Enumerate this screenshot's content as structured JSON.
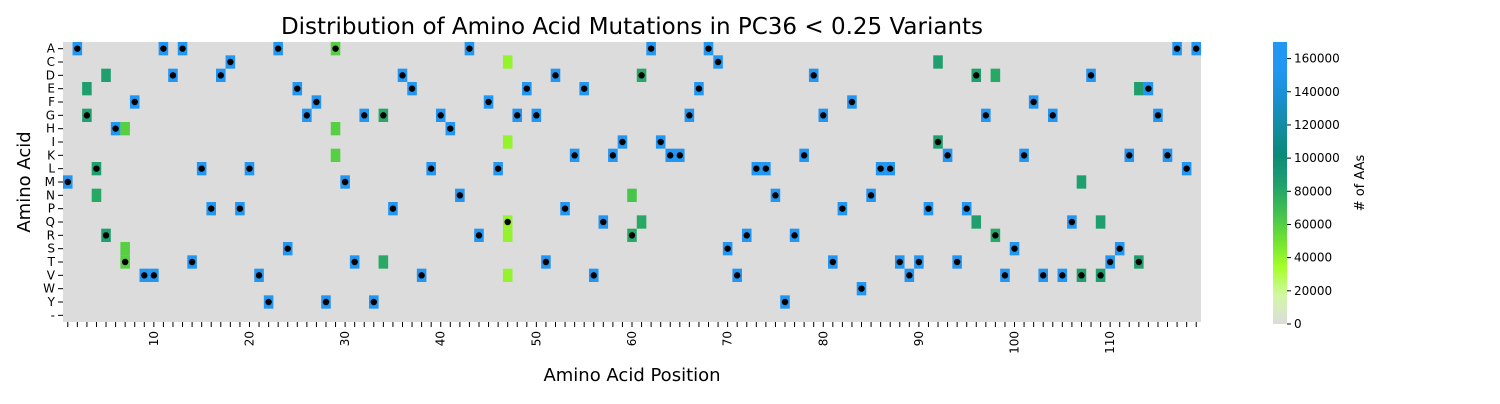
{
  "chart_data": {
    "type": "heatmap",
    "title": "Distribution of Amino Acid Mutations in PC36 < 0.25 Variants",
    "xlabel": "Amino Acid Position",
    "ylabel": "Amino Acid",
    "x_range": [
      1,
      119
    ],
    "x_tick_labels": [
      "10",
      "20",
      "30",
      "40",
      "50",
      "60",
      "70",
      "80",
      "90",
      "100",
      "110"
    ],
    "x_tick_values": [
      10,
      20,
      30,
      40,
      50,
      60,
      70,
      80,
      90,
      100,
      110
    ],
    "y_categories": [
      "A",
      "C",
      "D",
      "E",
      "F",
      "G",
      "H",
      "I",
      "K",
      "L",
      "M",
      "N",
      "P",
      "Q",
      "R",
      "S",
      "T",
      "V",
      "W",
      "Y",
      "-"
    ],
    "colorbar": {
      "label": "# of AAs",
      "range": [
        0,
        170000
      ],
      "ticks": [
        "0",
        "20000",
        "40000",
        "60000",
        "80000",
        "100000",
        "120000",
        "140000",
        "160000"
      ],
      "tick_values": [
        0,
        20000,
        40000,
        60000,
        80000,
        100000,
        120000,
        140000,
        160000
      ],
      "colors": [
        "#dcdcdc",
        "#d2f7a6",
        "#a6ff2a",
        "#6fe033",
        "#3fbf4f",
        "#1f9f6e",
        "#0a8a78",
        "#148ca0",
        "#1a8fd0",
        "#2196f3",
        "#2196f3"
      ]
    },
    "wildtype_marker": "black dot marks the wild-type amino acid at each position",
    "cells": [
      {
        "aa": "M",
        "pos": 1,
        "value": 160000,
        "wt": true
      },
      {
        "aa": "A",
        "pos": 2,
        "value": 160000,
        "wt": true
      },
      {
        "aa": "E",
        "pos": 3,
        "value": 85000,
        "wt": false
      },
      {
        "aa": "G",
        "pos": 3,
        "value": 85000,
        "wt": true
      },
      {
        "aa": "L",
        "pos": 4,
        "value": 85000,
        "wt": true
      },
      {
        "aa": "N",
        "pos": 4,
        "value": 80000,
        "wt": false
      },
      {
        "aa": "D",
        "pos": 5,
        "value": 85000,
        "wt": false
      },
      {
        "aa": "R",
        "pos": 5,
        "value": 85000,
        "wt": true
      },
      {
        "aa": "H",
        "pos": 6,
        "value": 160000,
        "wt": true
      },
      {
        "aa": "H",
        "pos": 7,
        "value": 60000,
        "wt": false
      },
      {
        "aa": "S",
        "pos": 7,
        "value": 60000,
        "wt": false
      },
      {
        "aa": "T",
        "pos": 7,
        "value": 60000,
        "wt": true
      },
      {
        "aa": "F",
        "pos": 8,
        "value": 160000,
        "wt": true
      },
      {
        "aa": "V",
        "pos": 9,
        "value": 160000,
        "wt": true
      },
      {
        "aa": "V",
        "pos": 10,
        "value": 160000,
        "wt": true
      },
      {
        "aa": "A",
        "pos": 11,
        "value": 160000,
        "wt": true
      },
      {
        "aa": "D",
        "pos": 12,
        "value": 160000,
        "wt": true
      },
      {
        "aa": "A",
        "pos": 13,
        "value": 160000,
        "wt": true
      },
      {
        "aa": "T",
        "pos": 14,
        "value": 160000,
        "wt": true
      },
      {
        "aa": "L",
        "pos": 15,
        "value": 160000,
        "wt": true
      },
      {
        "aa": "P",
        "pos": 16,
        "value": 160000,
        "wt": true
      },
      {
        "aa": "D",
        "pos": 17,
        "value": 160000,
        "wt": true
      },
      {
        "aa": "C",
        "pos": 18,
        "value": 160000,
        "wt": true
      },
      {
        "aa": "P",
        "pos": 19,
        "value": 160000,
        "wt": true
      },
      {
        "aa": "L",
        "pos": 20,
        "value": 160000,
        "wt": true
      },
      {
        "aa": "V",
        "pos": 21,
        "value": 160000,
        "wt": true
      },
      {
        "aa": "Y",
        "pos": 22,
        "value": 160000,
        "wt": true
      },
      {
        "aa": "A",
        "pos": 23,
        "value": 160000,
        "wt": true
      },
      {
        "aa": "S",
        "pos": 24,
        "value": 160000,
        "wt": true
      },
      {
        "aa": "E",
        "pos": 25,
        "value": 160000,
        "wt": true
      },
      {
        "aa": "G",
        "pos": 26,
        "value": 160000,
        "wt": true
      },
      {
        "aa": "F",
        "pos": 27,
        "value": 160000,
        "wt": true
      },
      {
        "aa": "Y",
        "pos": 28,
        "value": 160000,
        "wt": true
      },
      {
        "aa": "A",
        "pos": 29,
        "value": 60000,
        "wt": true
      },
      {
        "aa": "H",
        "pos": 29,
        "value": 60000,
        "wt": false
      },
      {
        "aa": "K",
        "pos": 29,
        "value": 60000,
        "wt": false
      },
      {
        "aa": "M",
        "pos": 30,
        "value": 160000,
        "wt": true
      },
      {
        "aa": "T",
        "pos": 31,
        "value": 160000,
        "wt": true
      },
      {
        "aa": "G",
        "pos": 32,
        "value": 160000,
        "wt": true
      },
      {
        "aa": "Y",
        "pos": 33,
        "value": 160000,
        "wt": true
      },
      {
        "aa": "G",
        "pos": 34,
        "value": 80000,
        "wt": true
      },
      {
        "aa": "T",
        "pos": 34,
        "value": 80000,
        "wt": false
      },
      {
        "aa": "P",
        "pos": 35,
        "value": 160000,
        "wt": true
      },
      {
        "aa": "D",
        "pos": 36,
        "value": 160000,
        "wt": true
      },
      {
        "aa": "E",
        "pos": 37,
        "value": 160000,
        "wt": true
      },
      {
        "aa": "V",
        "pos": 38,
        "value": 160000,
        "wt": true
      },
      {
        "aa": "L",
        "pos": 39,
        "value": 160000,
        "wt": true
      },
      {
        "aa": "G",
        "pos": 40,
        "value": 160000,
        "wt": true
      },
      {
        "aa": "H",
        "pos": 41,
        "value": 160000,
        "wt": true
      },
      {
        "aa": "N",
        "pos": 42,
        "value": 160000,
        "wt": true
      },
      {
        "aa": "A",
        "pos": 43,
        "value": 160000,
        "wt": true
      },
      {
        "aa": "R",
        "pos": 44,
        "value": 160000,
        "wt": true
      },
      {
        "aa": "F",
        "pos": 45,
        "value": 160000,
        "wt": true
      },
      {
        "aa": "L",
        "pos": 46,
        "value": 160000,
        "wt": true
      },
      {
        "aa": "C",
        "pos": 47,
        "value": 40000,
        "wt": false
      },
      {
        "aa": "I",
        "pos": 47,
        "value": 40000,
        "wt": false
      },
      {
        "aa": "Q",
        "pos": 47,
        "value": 40000,
        "wt": true
      },
      {
        "aa": "R",
        "pos": 47,
        "value": 40000,
        "wt": false
      },
      {
        "aa": "V",
        "pos": 47,
        "value": 40000,
        "wt": false
      },
      {
        "aa": "G",
        "pos": 48,
        "value": 160000,
        "wt": true
      },
      {
        "aa": "E",
        "pos": 49,
        "value": 160000,
        "wt": true
      },
      {
        "aa": "G",
        "pos": 50,
        "value": 160000,
        "wt": true
      },
      {
        "aa": "T",
        "pos": 51,
        "value": 160000,
        "wt": true
      },
      {
        "aa": "D",
        "pos": 52,
        "value": 160000,
        "wt": true
      },
      {
        "aa": "P",
        "pos": 53,
        "value": 160000,
        "wt": true
      },
      {
        "aa": "K",
        "pos": 54,
        "value": 160000,
        "wt": true
      },
      {
        "aa": "E",
        "pos": 55,
        "value": 160000,
        "wt": true
      },
      {
        "aa": "V",
        "pos": 56,
        "value": 160000,
        "wt": true
      },
      {
        "aa": "Q",
        "pos": 57,
        "value": 160000,
        "wt": true
      },
      {
        "aa": "K",
        "pos": 58,
        "value": 160000,
        "wt": true
      },
      {
        "aa": "I",
        "pos": 59,
        "value": 160000,
        "wt": true
      },
      {
        "aa": "N",
        "pos": 60,
        "value": 65000,
        "wt": false
      },
      {
        "aa": "R",
        "pos": 60,
        "value": 80000,
        "wt": true
      },
      {
        "aa": "D",
        "pos": 61,
        "value": 80000,
        "wt": true
      },
      {
        "aa": "Q",
        "pos": 61,
        "value": 80000,
        "wt": false
      },
      {
        "aa": "A",
        "pos": 62,
        "value": 160000,
        "wt": true
      },
      {
        "aa": "I",
        "pos": 63,
        "value": 160000,
        "wt": true
      },
      {
        "aa": "K",
        "pos": 64,
        "value": 160000,
        "wt": true
      },
      {
        "aa": "K",
        "pos": 65,
        "value": 160000,
        "wt": true
      },
      {
        "aa": "G",
        "pos": 66,
        "value": 160000,
        "wt": true
      },
      {
        "aa": "E",
        "pos": 67,
        "value": 160000,
        "wt": true
      },
      {
        "aa": "A",
        "pos": 68,
        "value": 160000,
        "wt": true
      },
      {
        "aa": "C",
        "pos": 69,
        "value": 160000,
        "wt": true
      },
      {
        "aa": "S",
        "pos": 70,
        "value": 160000,
        "wt": true
      },
      {
        "aa": "V",
        "pos": 71,
        "value": 160000,
        "wt": true
      },
      {
        "aa": "R",
        "pos": 72,
        "value": 160000,
        "wt": true
      },
      {
        "aa": "L",
        "pos": 73,
        "value": 160000,
        "wt": true
      },
      {
        "aa": "L",
        "pos": 74,
        "value": 160000,
        "wt": true
      },
      {
        "aa": "N",
        "pos": 75,
        "value": 160000,
        "wt": true
      },
      {
        "aa": "Y",
        "pos": 76,
        "value": 160000,
        "wt": true
      },
      {
        "aa": "R",
        "pos": 77,
        "value": 160000,
        "wt": true
      },
      {
        "aa": "K",
        "pos": 78,
        "value": 160000,
        "wt": true
      },
      {
        "aa": "D",
        "pos": 79,
        "value": 160000,
        "wt": true
      },
      {
        "aa": "G",
        "pos": 80,
        "value": 160000,
        "wt": true
      },
      {
        "aa": "T",
        "pos": 81,
        "value": 160000,
        "wt": true
      },
      {
        "aa": "P",
        "pos": 82,
        "value": 160000,
        "wt": true
      },
      {
        "aa": "F",
        "pos": 83,
        "value": 160000,
        "wt": true
      },
      {
        "aa": "W",
        "pos": 84,
        "value": 160000,
        "wt": true
      },
      {
        "aa": "N",
        "pos": 85,
        "value": 160000,
        "wt": true
      },
      {
        "aa": "L",
        "pos": 86,
        "value": 160000,
        "wt": true
      },
      {
        "aa": "L",
        "pos": 87,
        "value": 160000,
        "wt": true
      },
      {
        "aa": "T",
        "pos": 88,
        "value": 160000,
        "wt": true
      },
      {
        "aa": "V",
        "pos": 89,
        "value": 160000,
        "wt": true
      },
      {
        "aa": "T",
        "pos": 90,
        "value": 160000,
        "wt": true
      },
      {
        "aa": "P",
        "pos": 91,
        "value": 160000,
        "wt": true
      },
      {
        "aa": "C",
        "pos": 92,
        "value": 85000,
        "wt": false
      },
      {
        "aa": "I",
        "pos": 92,
        "value": 85000,
        "wt": true
      },
      {
        "aa": "K",
        "pos": 93,
        "value": 160000,
        "wt": true
      },
      {
        "aa": "T",
        "pos": 94,
        "value": 160000,
        "wt": true
      },
      {
        "aa": "P",
        "pos": 95,
        "value": 160000,
        "wt": true
      },
      {
        "aa": "D",
        "pos": 96,
        "value": 85000,
        "wt": true
      },
      {
        "aa": "Q",
        "pos": 96,
        "value": 85000,
        "wt": false
      },
      {
        "aa": "G",
        "pos": 97,
        "value": 160000,
        "wt": true
      },
      {
        "aa": "D",
        "pos": 98,
        "value": 80000,
        "wt": false
      },
      {
        "aa": "R",
        "pos": 98,
        "value": 80000,
        "wt": true
      },
      {
        "aa": "V",
        "pos": 99,
        "value": 160000,
        "wt": true
      },
      {
        "aa": "S",
        "pos": 100,
        "value": 160000,
        "wt": true
      },
      {
        "aa": "K",
        "pos": 101,
        "value": 160000,
        "wt": true
      },
      {
        "aa": "F",
        "pos": 102,
        "value": 160000,
        "wt": true
      },
      {
        "aa": "V",
        "pos": 103,
        "value": 160000,
        "wt": true
      },
      {
        "aa": "G",
        "pos": 104,
        "value": 160000,
        "wt": true
      },
      {
        "aa": "V",
        "pos": 105,
        "value": 160000,
        "wt": true
      },
      {
        "aa": "Q",
        "pos": 106,
        "value": 160000,
        "wt": true
      },
      {
        "aa": "M",
        "pos": 107,
        "value": 85000,
        "wt": false
      },
      {
        "aa": "V",
        "pos": 107,
        "value": 85000,
        "wt": true
      },
      {
        "aa": "D",
        "pos": 108,
        "value": 160000,
        "wt": true
      },
      {
        "aa": "Q",
        "pos": 109,
        "value": 85000,
        "wt": false
      },
      {
        "aa": "V",
        "pos": 109,
        "value": 85000,
        "wt": true
      },
      {
        "aa": "T",
        "pos": 110,
        "value": 160000,
        "wt": true
      },
      {
        "aa": "S",
        "pos": 111,
        "value": 160000,
        "wt": true
      },
      {
        "aa": "K",
        "pos": 112,
        "value": 160000,
        "wt": true
      },
      {
        "aa": "E",
        "pos": 113,
        "value": 85000,
        "wt": false
      },
      {
        "aa": "T",
        "pos": 113,
        "value": 85000,
        "wt": true
      },
      {
        "aa": "E",
        "pos": 114,
        "value": 160000,
        "wt": true
      },
      {
        "aa": "G",
        "pos": 115,
        "value": 160000,
        "wt": true
      },
      {
        "aa": "K",
        "pos": 116,
        "value": 160000,
        "wt": true
      },
      {
        "aa": "A",
        "pos": 117,
        "value": 160000,
        "wt": true
      },
      {
        "aa": "L",
        "pos": 118,
        "value": 160000,
        "wt": true
      },
      {
        "aa": "A",
        "pos": 119,
        "value": 160000,
        "wt": true
      }
    ]
  }
}
